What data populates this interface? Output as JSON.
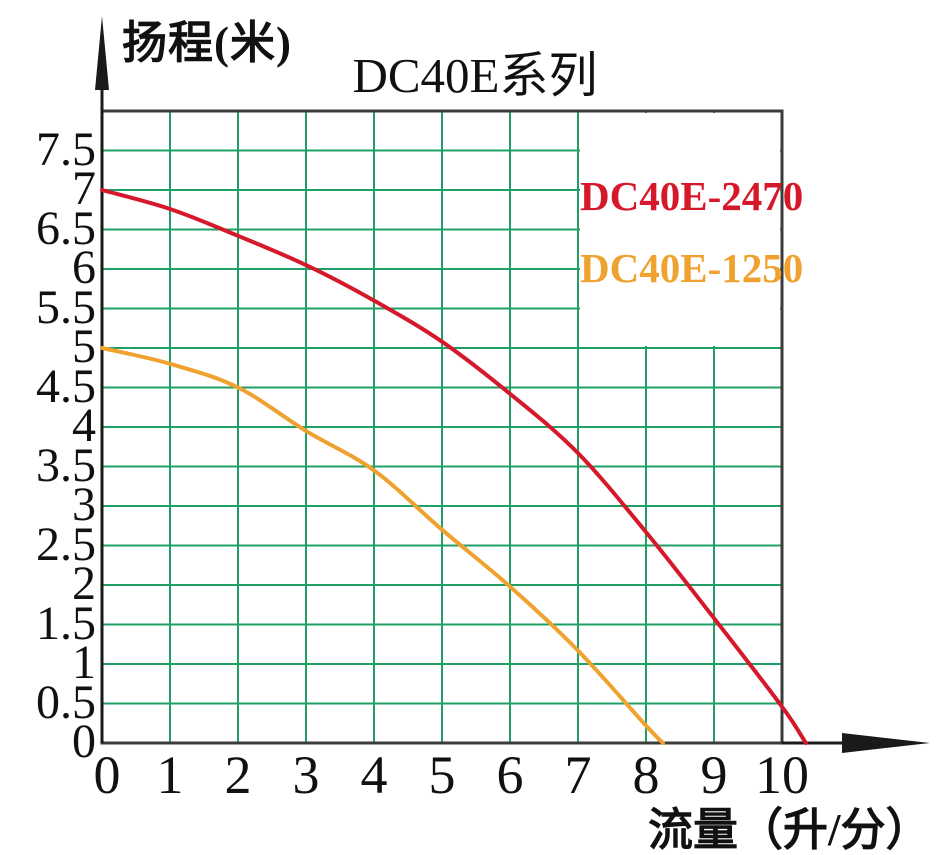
{
  "title": "DC40E系列",
  "y_axis": {
    "label": "扬程(米)",
    "ticks": [
      "7.5",
      "7",
      "6.5",
      "6",
      "5.5",
      "5",
      "4.5",
      "4",
      "3.5",
      "3",
      "2.5",
      "2",
      "1.5",
      "1",
      "0.5",
      "0"
    ]
  },
  "x_axis": {
    "label": "流量（升/分）",
    "ticks": [
      "0",
      "1",
      "2",
      "3",
      "4",
      "5",
      "6",
      "7",
      "8",
      "9",
      "10"
    ]
  },
  "legend": {
    "items": [
      {
        "label": "DC40E-2470",
        "color": "#d6182b"
      },
      {
        "label": "DC40E-1250",
        "color": "#efa22f"
      }
    ]
  },
  "colors": {
    "grid": "#21a065",
    "border": "#3b3b3b",
    "axis": "#1a1a1a",
    "text": "#111111",
    "legend_bg": "#ffffff"
  },
  "chart_data": {
    "type": "line",
    "title": "DC40E系列",
    "xlabel": "流量（升/分）",
    "ylabel": "扬程(米)",
    "xlim": [
      0,
      10
    ],
    "ylim": [
      0,
      8
    ],
    "x_tick_step": 1,
    "y_tick_step": 0.5,
    "grid": true,
    "legend_position": "upper right",
    "series": [
      {
        "name": "DC40E-2470",
        "color": "#d6182b",
        "points": [
          [
            0,
            7.0
          ],
          [
            1,
            6.76
          ],
          [
            2,
            6.42
          ],
          [
            3,
            6.05
          ],
          [
            4,
            5.6
          ],
          [
            5,
            5.08
          ],
          [
            6,
            4.42
          ],
          [
            7,
            3.67
          ],
          [
            8,
            2.67
          ],
          [
            9,
            1.58
          ],
          [
            10,
            0.46
          ],
          [
            10.35,
            0
          ]
        ]
      },
      {
        "name": "DC40E-1250",
        "color": "#efa22f",
        "points": [
          [
            0,
            5.0
          ],
          [
            1,
            4.8
          ],
          [
            2,
            4.5
          ],
          [
            3,
            3.95
          ],
          [
            4,
            3.45
          ],
          [
            5,
            2.7
          ],
          [
            6,
            1.98
          ],
          [
            7,
            1.17
          ],
          [
            8,
            0.22
          ],
          [
            8.25,
            0
          ]
        ]
      }
    ]
  }
}
